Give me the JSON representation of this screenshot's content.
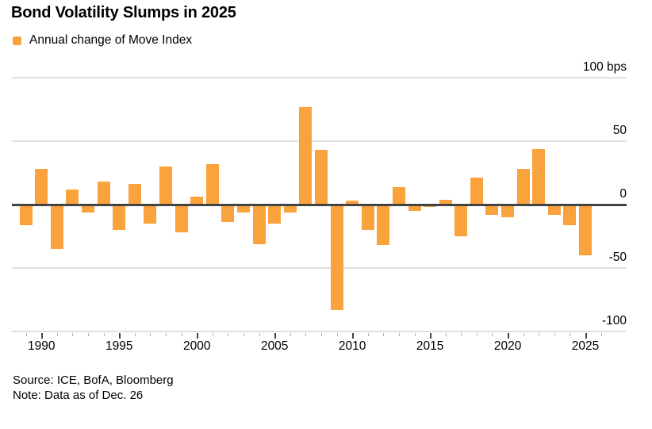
{
  "header": {
    "title": "Bond Volatility Slumps in 2025"
  },
  "legend": {
    "label": "Annual change of Move Index"
  },
  "colors": {
    "bar": "#faa23b",
    "zero_line": "#434343",
    "gridline": "#e0e0e0",
    "minor_tick": "#b0b0b0",
    "major_tick": "#444444"
  },
  "chart_data": {
    "type": "bar",
    "title": "Bond Volatility Slumps in 2025",
    "series_name": "Annual change of Move Index",
    "unit": "bps",
    "x": [
      1989,
      1990,
      1991,
      1992,
      1993,
      1994,
      1995,
      1996,
      1997,
      1998,
      1999,
      2000,
      2001,
      2002,
      2003,
      2004,
      2005,
      2006,
      2007,
      2008,
      2009,
      2010,
      2011,
      2012,
      2013,
      2014,
      2015,
      2016,
      2017,
      2018,
      2019,
      2020,
      2021,
      2022,
      2023,
      2024,
      2025
    ],
    "values": [
      -16,
      28,
      -35,
      12,
      -6,
      18,
      -20,
      16,
      -15,
      30,
      -22,
      6,
      32,
      -14,
      -6,
      -31,
      -15,
      -6,
      77,
      43,
      -83,
      3,
      -20,
      -32,
      14,
      -5,
      -2,
      4,
      -25,
      21,
      -8,
      -10,
      28,
      44,
      -8,
      -16,
      -40
    ],
    "ylim": [
      -100,
      100
    ],
    "y_ticks": [
      {
        "value": 100,
        "label": "100 bps"
      },
      {
        "value": 50,
        "label": "50"
      },
      {
        "value": 0,
        "label": "0"
      },
      {
        "value": -50,
        "label": "-50"
      },
      {
        "value": -100,
        "label": "-100"
      }
    ],
    "x_major_ticks": [
      1990,
      1995,
      2000,
      2005,
      2010,
      2015,
      2020,
      2025
    ],
    "grid": "horizontal",
    "legend_position": "top-left"
  },
  "footer": {
    "source": "Source: ICE, BofA, Bloomberg",
    "note": "Note: Data as of Dec. 26"
  }
}
